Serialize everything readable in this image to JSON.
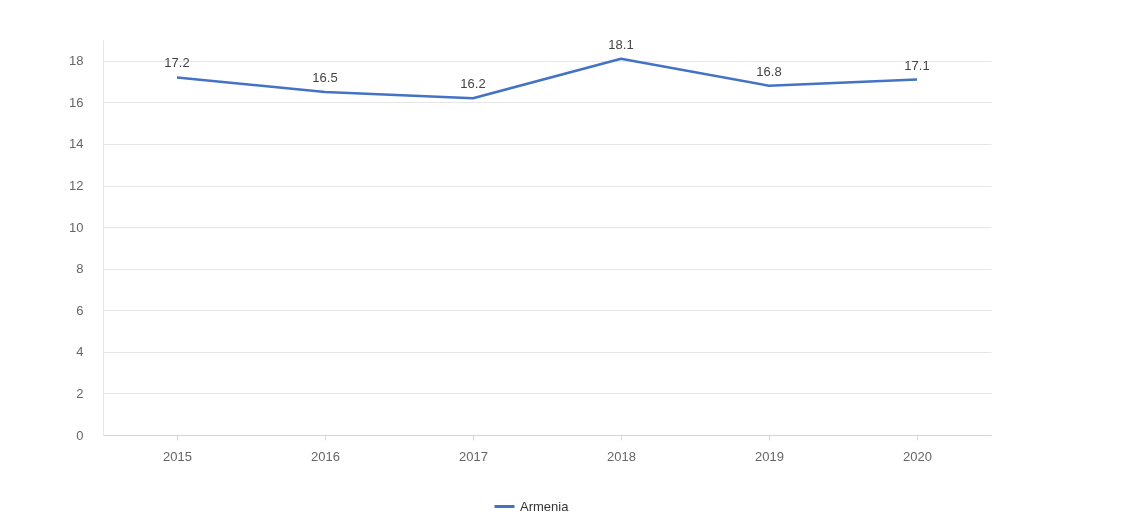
{
  "chart_data": {
    "type": "line",
    "categories": [
      "2015",
      "2016",
      "2017",
      "2018",
      "2019",
      "2020"
    ],
    "series": [
      {
        "name": "Armenia",
        "color": "#4472c4",
        "values": [
          17.2,
          16.5,
          16.2,
          18.1,
          16.8,
          17.1
        ]
      }
    ],
    "ylim": [
      0,
      19
    ],
    "yticks": [
      0,
      2,
      4,
      6,
      8,
      10,
      12,
      14,
      16,
      18
    ],
    "grid": "y",
    "legend": "bottom",
    "data_labels": true,
    "marker": "none",
    "line_style": "solid"
  }
}
